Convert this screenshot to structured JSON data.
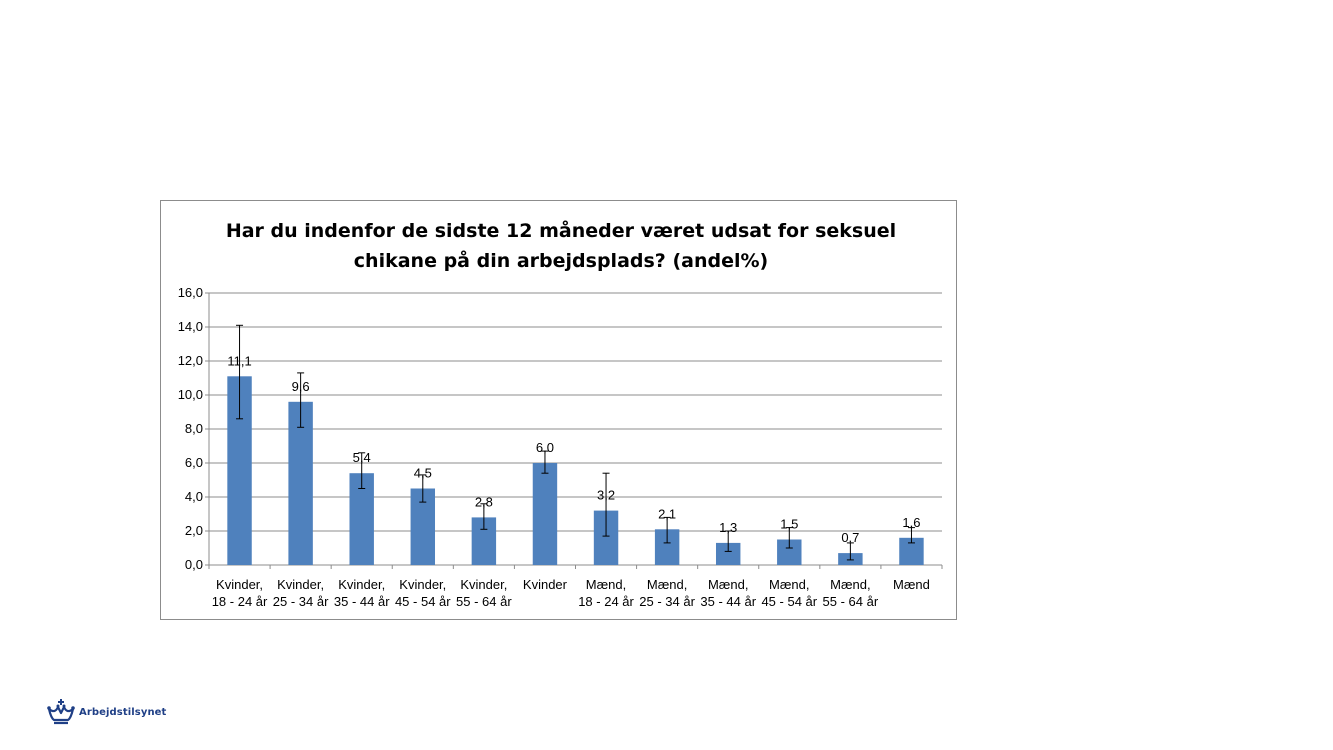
{
  "chart_data": {
    "type": "bar",
    "title_lines": [
      "Har du indenfor de sidste 12 måneder været udsat for seksuel",
      "chikane på din arbejdsplads? (andel%)"
    ],
    "categories": [
      [
        "Kvinder,",
        "18 - 24 år"
      ],
      [
        "Kvinder,",
        "25 - 34 år"
      ],
      [
        "Kvinder,",
        "35 - 44 år"
      ],
      [
        "Kvinder,",
        "45 - 54 år"
      ],
      [
        "Kvinder,",
        "55 - 64 år"
      ],
      [
        "Kvinder"
      ],
      [
        "Mænd,",
        "18 - 24 år"
      ],
      [
        "Mænd,",
        "25 - 34 år"
      ],
      [
        "Mænd,",
        "35 - 44 år"
      ],
      [
        "Mænd,",
        "45 - 54 år"
      ],
      [
        "Mænd,",
        "55 - 64 år"
      ],
      [
        "Mænd"
      ]
    ],
    "values": [
      11.1,
      9.6,
      5.4,
      4.5,
      2.8,
      6.0,
      3.2,
      2.1,
      1.3,
      1.5,
      0.7,
      1.6
    ],
    "value_labels": [
      "11,1",
      "9,6",
      "5,4",
      "4,5",
      "2,8",
      "6,0",
      "3,2",
      "2,1",
      "1,3",
      "1,5",
      "0,7",
      "1,6"
    ],
    "error_low": [
      8.6,
      8.1,
      4.5,
      3.7,
      2.1,
      5.4,
      1.7,
      1.3,
      0.8,
      1.0,
      0.3,
      1.3
    ],
    "error_high": [
      14.1,
      11.3,
      6.6,
      5.3,
      3.6,
      6.7,
      5.4,
      2.8,
      2.0,
      2.2,
      1.3,
      2.2
    ],
    "ylim": [
      0,
      16
    ],
    "yticks": [
      "0,0",
      "2,0",
      "4,0",
      "6,0",
      "8,0",
      "10,0",
      "12,0",
      "14,0",
      "16,0"
    ],
    "grid": true,
    "colors": {
      "bar": "#4f81bd",
      "grid": "#8c8c8c",
      "errorbar": "#000000"
    }
  },
  "logo": {
    "text": "Arbejdstilsynet",
    "color": "#1f3f86"
  }
}
